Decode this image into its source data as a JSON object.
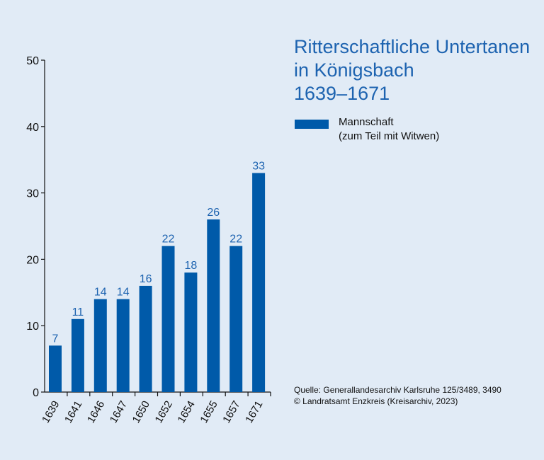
{
  "title_lines": [
    "Ritterschaftliche Untertanen",
    "in Königsbach",
    "1639–1671"
  ],
  "legend": {
    "lines": [
      "Mannschaft",
      "(zum Teil mit Witwen)"
    ],
    "color": "#005aa9"
  },
  "source_lines": [
    "Quelle: Generallandesarchiv Karlsruhe 125/3489, 3490",
    "© Landratsamt Enzkreis (Kreisarchiv, 2023)"
  ],
  "chart_data": {
    "type": "bar",
    "categories": [
      "1639",
      "1641",
      "1646",
      "1647",
      "1650",
      "1652",
      "1654",
      "1655",
      "1657",
      "1671"
    ],
    "series": [
      {
        "name": "Mannschaft (zum Teil mit Witwen)",
        "values": [
          7,
          11,
          14,
          14,
          16,
          22,
          18,
          26,
          22,
          33
        ]
      }
    ],
    "title": "Ritterschaftliche Untertanen in Königsbach 1639–1671",
    "xlabel": "",
    "ylabel": "",
    "ylim": [
      0,
      50
    ],
    "yticks": [
      0,
      10,
      20,
      30,
      40,
      50
    ],
    "grid": false,
    "legend_position": "top-right",
    "bar_color": "#005aa9",
    "value_label_color": "#1d63b0"
  }
}
